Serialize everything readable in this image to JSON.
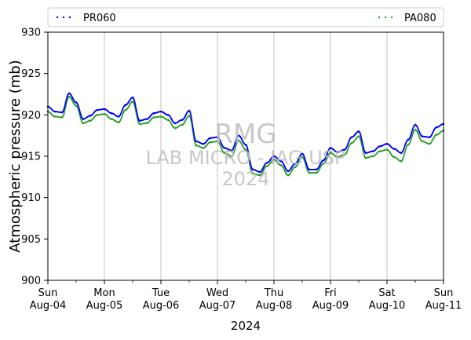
{
  "chart_data": {
    "type": "line",
    "ylabel": "Atmospheric pressure (mb)",
    "xlabel": "2024",
    "ylim": [
      900,
      930
    ],
    "yticks": [
      900,
      905,
      910,
      915,
      920,
      925,
      930
    ],
    "xlim": [
      "2024-08-04",
      "2024-08-11"
    ],
    "xticks": [
      {
        "date": "2024-08-04",
        "day": "Sun",
        "date_label": "Aug-04"
      },
      {
        "date": "2024-08-05",
        "day": "Mon",
        "date_label": "Aug-05"
      },
      {
        "date": "2024-08-06",
        "day": "Tue",
        "date_label": "Aug-06"
      },
      {
        "date": "2024-08-07",
        "day": "Wed",
        "date_label": "Aug-07"
      },
      {
        "date": "2024-08-08",
        "day": "Thu",
        "date_label": "Aug-08"
      },
      {
        "date": "2024-08-09",
        "day": "Fri",
        "date_label": "Aug-09"
      },
      {
        "date": "2024-08-10",
        "day": "Sat",
        "date_label": "Aug-10"
      },
      {
        "date": "2024-08-11",
        "day": "Sun",
        "date_label": "Aug-11"
      }
    ],
    "grid": "vertical at major ticks",
    "legend": "top, outside plot",
    "series": [
      {
        "name": "PR060",
        "color": "#0000ff",
        "x": [
          "2024-08-04 00:00",
          "2024-08-04 03:00",
          "2024-08-04 06:00",
          "2024-08-04 09:00",
          "2024-08-04 12:00",
          "2024-08-04 15:00",
          "2024-08-04 18:00",
          "2024-08-04 21:00",
          "2024-08-05 00:00",
          "2024-08-05 03:00",
          "2024-08-05 06:00",
          "2024-08-05 09:00",
          "2024-08-05 12:00",
          "2024-08-05 15:00",
          "2024-08-05 18:00",
          "2024-08-05 21:00",
          "2024-08-06 00:00",
          "2024-08-06 03:00",
          "2024-08-06 06:00",
          "2024-08-06 09:00",
          "2024-08-06 12:00",
          "2024-08-06 15:00",
          "2024-08-06 18:00",
          "2024-08-06 21:00",
          "2024-08-07 00:00",
          "2024-08-07 03:00",
          "2024-08-07 06:00",
          "2024-08-07 09:00",
          "2024-08-07 12:00",
          "2024-08-07 15:00",
          "2024-08-07 18:00",
          "2024-08-07 21:00",
          "2024-08-08 00:00",
          "2024-08-08 03:00",
          "2024-08-08 06:00",
          "2024-08-08 09:00",
          "2024-08-08 12:00",
          "2024-08-08 15:00",
          "2024-08-08 18:00",
          "2024-08-08 21:00",
          "2024-08-09 00:00",
          "2024-08-09 03:00",
          "2024-08-09 06:00",
          "2024-08-09 09:00",
          "2024-08-09 12:00",
          "2024-08-09 15:00",
          "2024-08-09 18:00",
          "2024-08-09 21:00",
          "2024-08-10 00:00",
          "2024-08-10 03:00",
          "2024-08-10 06:00",
          "2024-08-10 09:00",
          "2024-08-10 12:00",
          "2024-08-10 15:00",
          "2024-08-10 18:00",
          "2024-08-10 21:00",
          "2024-08-11 00:00"
        ],
        "y": [
          921.0,
          920.4,
          920.3,
          922.6,
          921.5,
          919.5,
          919.9,
          920.6,
          920.7,
          920.2,
          919.8,
          921.2,
          922.1,
          919.3,
          919.5,
          920.2,
          920.4,
          920.0,
          919.0,
          919.4,
          920.5,
          916.8,
          916.5,
          917.2,
          917.3,
          916.0,
          915.7,
          917.5,
          916.4,
          913.4,
          913.1,
          914.2,
          915.0,
          914.4,
          913.2,
          914.1,
          915.3,
          913.4,
          913.4,
          914.5,
          916.0,
          915.5,
          915.8,
          917.3,
          918.0,
          915.4,
          915.6,
          916.2,
          916.5,
          915.9,
          915.4,
          917.0,
          918.8,
          917.4,
          917.3,
          918.5,
          918.9
        ]
      },
      {
        "name": "PA080",
        "color": "#2ca02c",
        "x": [
          "2024-08-04 00:00",
          "2024-08-04 03:00",
          "2024-08-04 06:00",
          "2024-08-04 09:00",
          "2024-08-04 12:00",
          "2024-08-04 15:00",
          "2024-08-04 18:00",
          "2024-08-04 21:00",
          "2024-08-05 00:00",
          "2024-08-05 03:00",
          "2024-08-05 06:00",
          "2024-08-05 09:00",
          "2024-08-05 12:00",
          "2024-08-05 15:00",
          "2024-08-05 18:00",
          "2024-08-05 21:00",
          "2024-08-06 00:00",
          "2024-08-06 03:00",
          "2024-08-06 06:00",
          "2024-08-06 09:00",
          "2024-08-06 12:00",
          "2024-08-06 15:00",
          "2024-08-06 18:00",
          "2024-08-06 21:00",
          "2024-08-07 00:00",
          "2024-08-07 03:00",
          "2024-08-07 06:00",
          "2024-08-07 09:00",
          "2024-08-07 12:00",
          "2024-08-07 15:00",
          "2024-08-07 18:00",
          "2024-08-07 21:00",
          "2024-08-08 00:00",
          "2024-08-08 03:00",
          "2024-08-08 06:00",
          "2024-08-08 09:00",
          "2024-08-08 12:00",
          "2024-08-08 15:00",
          "2024-08-08 18:00",
          "2024-08-08 21:00",
          "2024-08-09 00:00",
          "2024-08-09 03:00",
          "2024-08-09 06:00",
          "2024-08-09 09:00",
          "2024-08-09 12:00",
          "2024-08-09 15:00",
          "2024-08-09 18:00",
          "2024-08-09 21:00",
          "2024-08-10 00:00",
          "2024-08-10 03:00",
          "2024-08-10 06:00",
          "2024-08-10 09:00",
          "2024-08-10 12:00",
          "2024-08-10 15:00",
          "2024-08-10 18:00",
          "2024-08-10 21:00",
          "2024-08-11 00:00"
        ],
        "y": [
          920.4,
          919.8,
          919.7,
          922.2,
          921.1,
          919.0,
          919.3,
          920.0,
          920.1,
          919.5,
          919.1,
          920.6,
          921.6,
          918.9,
          919.0,
          919.7,
          919.8,
          919.4,
          918.4,
          918.8,
          919.9,
          916.3,
          916.0,
          916.7,
          916.8,
          915.4,
          915.0,
          916.9,
          915.8,
          912.9,
          912.7,
          913.8,
          914.6,
          913.9,
          912.7,
          913.7,
          914.9,
          913.0,
          913.0,
          914.1,
          915.4,
          914.9,
          915.2,
          916.6,
          917.4,
          914.8,
          915.0,
          915.6,
          915.8,
          914.9,
          914.4,
          916.4,
          918.2,
          916.8,
          916.5,
          917.6,
          918.1
        ]
      }
    ],
    "watermark": {
      "lines": [
        "RMG",
        "LAB MICRO - IAG USP",
        "2024"
      ],
      "color": "#bdbdbd"
    }
  }
}
